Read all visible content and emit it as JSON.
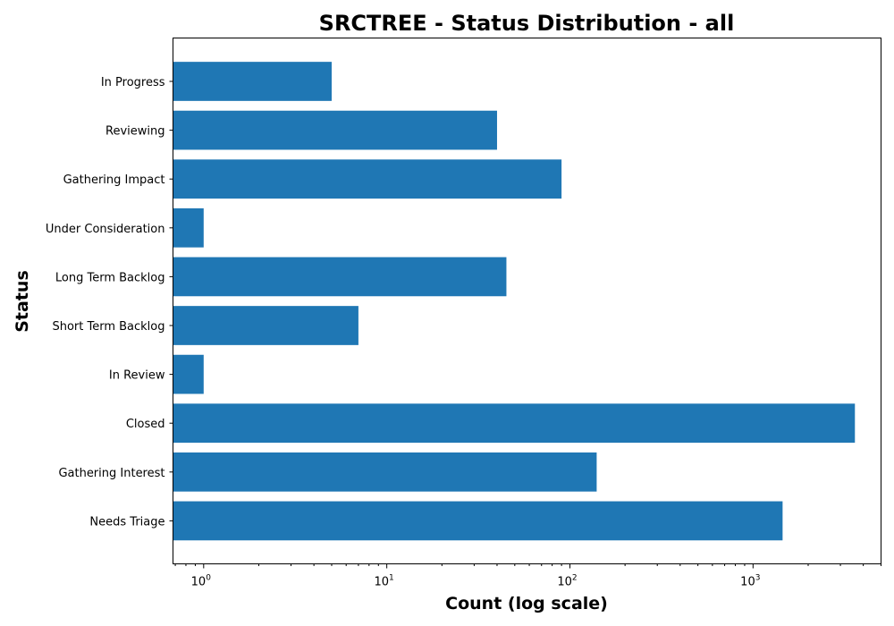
{
  "chart_data": {
    "type": "bar",
    "orientation": "horizontal",
    "title": "SRCTREE - Status Distribution - all",
    "xlabel": "Count (log scale)",
    "ylabel": "Status",
    "x_scale": "log",
    "xlim": [
      0.68,
      5000
    ],
    "x_major_ticks": [
      1,
      10,
      100,
      1000
    ],
    "x_tick_labels": [
      {
        "base": "10",
        "exp": "0"
      },
      {
        "base": "10",
        "exp": "1"
      },
      {
        "base": "10",
        "exp": "2"
      },
      {
        "base": "10",
        "exp": "3"
      }
    ],
    "categories": [
      "In Progress",
      "Reviewing",
      "Gathering Impact",
      "Under Consideration",
      "Long Term Backlog",
      "Short Term Backlog",
      "In Review",
      "Closed",
      "Gathering Interest",
      "Needs Triage"
    ],
    "values": [
      5,
      40,
      90,
      1,
      45,
      7,
      1,
      3600,
      140,
      1450
    ],
    "bar_color": "#1f77b4",
    "grid": false,
    "legend": "none"
  }
}
